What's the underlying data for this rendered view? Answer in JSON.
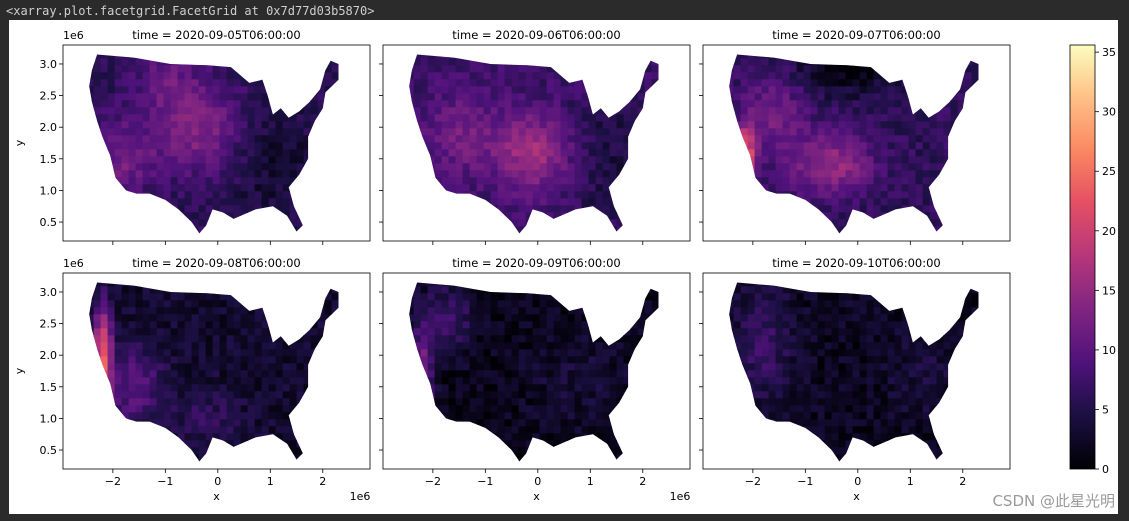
{
  "output_repr": "<xarray.plot.facetgrid.FacetGrid at 0x7d77d03b5870>",
  "watermark": "CSDN @此星光明",
  "chart_data": {
    "type": "heatmap",
    "colormap": "magma",
    "colorbar": {
      "min": 0,
      "max": 35.6,
      "ticks": [
        "0",
        "5",
        "10",
        "15",
        "20",
        "25",
        "30",
        "35"
      ],
      "tick_values": [
        0,
        5,
        10,
        15,
        20,
        25,
        30,
        35
      ]
    },
    "x_ticks": [
      "−2",
      "−1",
      "0",
      "1",
      "2"
    ],
    "x_tick_values": [
      -2,
      -1,
      0,
      1,
      2
    ],
    "y_ticks": [
      "0.5",
      "1.0",
      "1.5",
      "2.0",
      "2.5",
      "3.0"
    ],
    "y_tick_values": [
      0.5,
      1.0,
      1.5,
      2.0,
      2.5,
      3.0
    ],
    "xlim": [
      -2.95,
      2.9
    ],
    "ylim": [
      0.2,
      3.3
    ],
    "xlabel": "x",
    "ylabel": "y",
    "x_offset": "1e6",
    "y_offset": "1e6",
    "panels": [
      {
        "title": "time = 2020-09-05T06:00:00",
        "mean_level": 8,
        "hot_regions": "central and west"
      },
      {
        "title": "time = 2020-09-06T06:00:00",
        "mean_level": 9,
        "hot_regions": "central plains"
      },
      {
        "title": "time = 2020-09-07T06:00:00",
        "mean_level": 9,
        "hot_regions": "west coast and plains"
      },
      {
        "title": "time = 2020-09-08T06:00:00",
        "mean_level": 6,
        "hot_regions": "west coast"
      },
      {
        "title": "time = 2020-09-09T06:00:00",
        "mean_level": 4,
        "hot_regions": "west coast"
      },
      {
        "title": "time = 2020-09-10T06:00:00",
        "mean_level": 4,
        "hot_regions": "west"
      }
    ]
  }
}
